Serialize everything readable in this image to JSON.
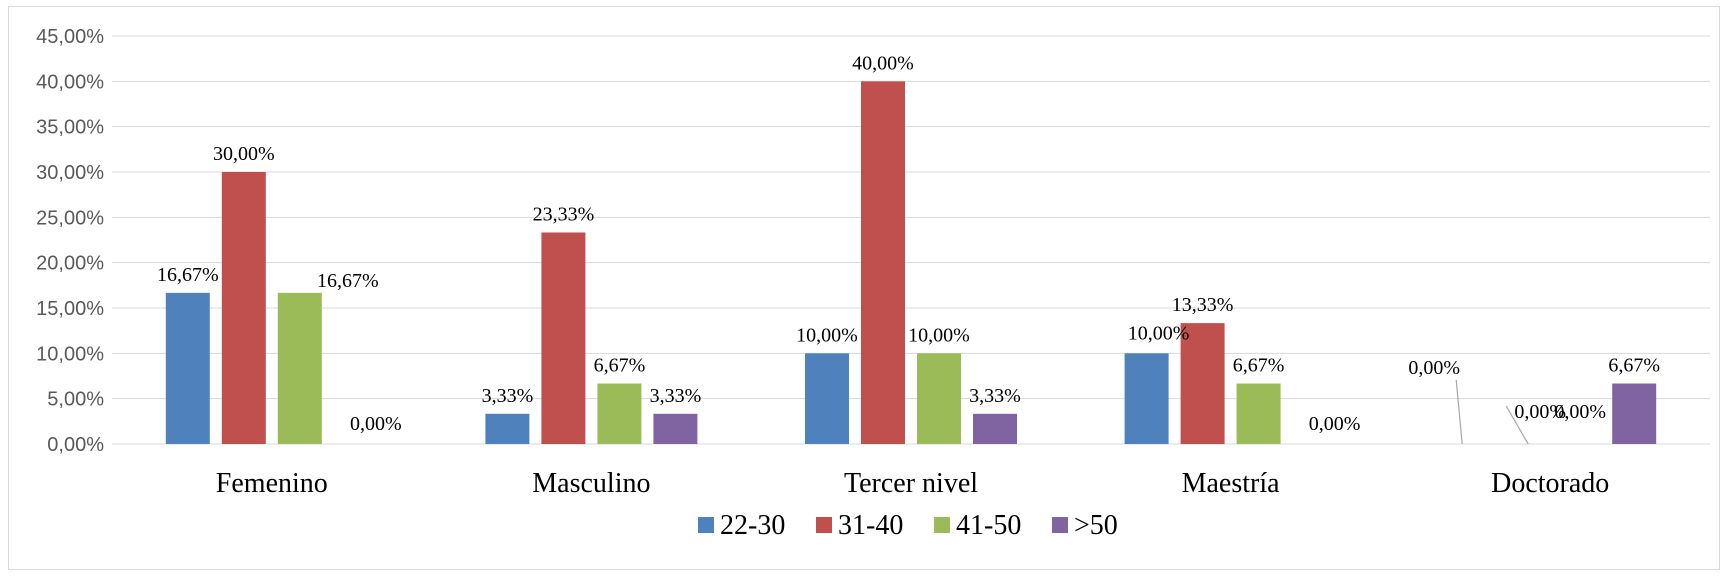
{
  "chart_data": {
    "type": "bar",
    "title": "",
    "xlabel": "",
    "ylabel": "",
    "categories": [
      "Femenino",
      "Masculino",
      "Tercer nivel",
      "Maestría",
      "Doctorado"
    ],
    "series": [
      {
        "name": "22-30",
        "color": "#4f81bd",
        "values": [
          16.67,
          3.33,
          10.0,
          10.0,
          0.0
        ],
        "labels": [
          "16,67%",
          "3,33%",
          "10,00%",
          "10,00%",
          "0,00%"
        ]
      },
      {
        "name": "31-40",
        "color": "#c0504d",
        "values": [
          30.0,
          23.33,
          40.0,
          13.33,
          0.0
        ],
        "labels": [
          "30,00%",
          "23,33%",
          "40,00%",
          "13,33%",
          "0,00%"
        ]
      },
      {
        "name": "41-50",
        "color": "#9bbb59",
        "values": [
          16.67,
          6.67,
          10.0,
          6.67,
          0.0
        ],
        "labels": [
          "16,67%",
          "6,67%",
          "10,00%",
          "6,67%",
          "0,00%"
        ]
      },
      {
        "name": ">50",
        "color": "#8064a2",
        "values": [
          0.0,
          3.33,
          3.33,
          0.0,
          6.67
        ],
        "labels": [
          "0,00%",
          "3,33%",
          "3,33%",
          "0,00%",
          "6,67%"
        ]
      }
    ],
    "ylim": [
      0,
      45
    ],
    "yticks": [
      0,
      5,
      10,
      15,
      20,
      25,
      30,
      35,
      40,
      45
    ],
    "ytick_labels": [
      "0,00%",
      "5,00%",
      "10,00%",
      "15,00%",
      "20,00%",
      "25,00%",
      "30,00%",
      "35,00%",
      "40,00%",
      "45,00%"
    ],
    "grid": true,
    "legend_position": "bottom"
  }
}
